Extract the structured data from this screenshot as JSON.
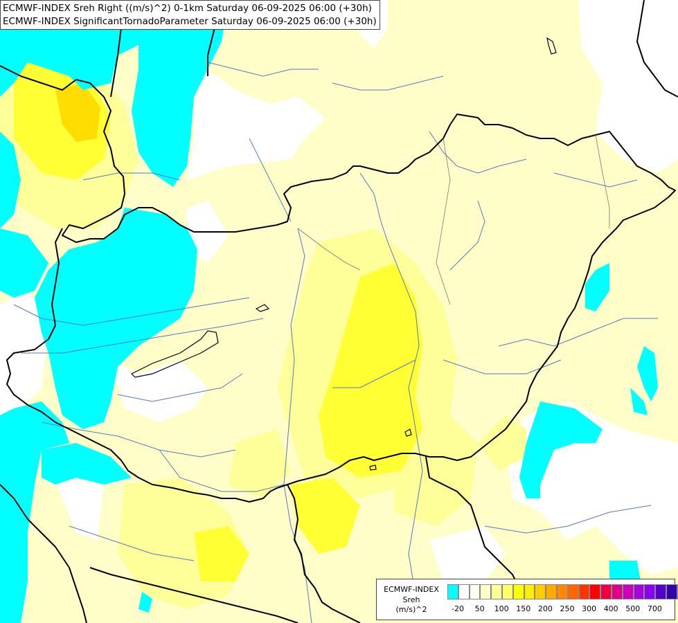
{
  "header": {
    "line1": "ECMWF-INDEX Sreh Right ((m/s)^2) 0-1km Saturday 06-09-2025 06:00 (+30h)",
    "line2": "ECMWF-INDEX SignificantTornadoParameter Saturday 06-09-2025 06:00 (+30h)"
  },
  "legend": {
    "source": "ECMWF-INDEX",
    "variable": "Sreh",
    "unit": "(m/s)^2",
    "colors": [
      "#00ffff",
      "#ffffff",
      "#fffff0",
      "#ffffcc",
      "#ffff99",
      "#ffff66",
      "#ffff00",
      "#ffee00",
      "#ffcc00",
      "#ffaa00",
      "#ff8800",
      "#ff6600",
      "#ff3300",
      "#ff0000",
      "#ee0044",
      "#dd0088",
      "#cc00bb",
      "#aa00dd",
      "#8800ee",
      "#5500cc",
      "#3300aa",
      "#000088"
    ],
    "ticks": [
      "-20",
      "50",
      "100",
      "150",
      "200",
      "250",
      "300",
      "400",
      "500",
      "700"
    ]
  },
  "colors": {
    "cyan": "#00ffff",
    "pale_yellow": "#ffffc2",
    "light_yellow": "#ffff99",
    "yellow": "#ffff33",
    "gold": "#ffdd00",
    "white": "#ffffff",
    "border": "#000000",
    "river": "#5577bb"
  }
}
